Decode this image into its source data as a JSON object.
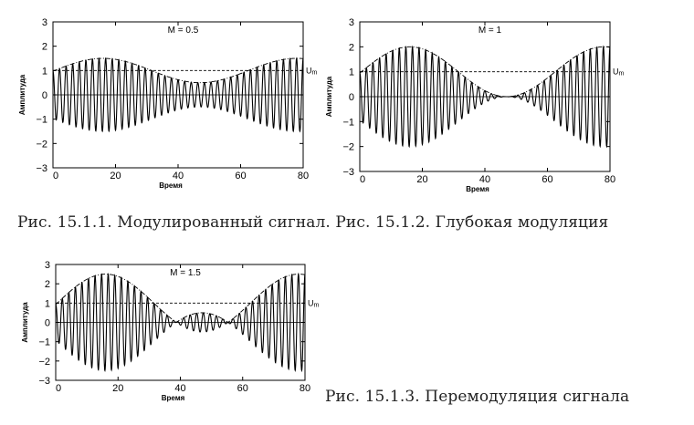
{
  "captions": {
    "fig1": "Рис. 15.1.1. Модулированный сигнал. Рис. 15.1.2. Глубокая модуляция",
    "fig3": "Рис. 15.1.3. Перемодуляция сигнала"
  },
  "chart_data": [
    {
      "type": "line",
      "annotation": "M = 0.5",
      "xlabel": "Время",
      "ylabel": "Амплитуда",
      "xlim": [
        0,
        80
      ],
      "ylim": [
        -3,
        3
      ],
      "xticks": [
        "0",
        "20",
        "40",
        "60",
        "80"
      ],
      "yticks": [
        "3",
        "2",
        "1",
        "0",
        "−1",
        "−2",
        "−3"
      ],
      "reference_label": "Um",
      "reference_level": 1,
      "modulation_index": 0.5,
      "envelope_period": 62,
      "envelope_peak_x": 16,
      "carrier_cycles": 38,
      "series": [
        {
          "values": "carrier y = (1 + 0.5*cos(2π(x-16)/62)) * cos(2π*38*x/80)",
          "style": "solid"
        },
        {
          "values": "envelope y = 1 + 0.5*cos(2π(x-16)/62)",
          "style": "dash-dot"
        },
        {
          "values": "y = 1",
          "style": "dashed"
        }
      ]
    },
    {
      "type": "line",
      "annotation": "M = 1",
      "xlabel": "Время",
      "ylabel": "Амплитуда",
      "xlim": [
        0,
        80
      ],
      "ylim": [
        -3,
        3
      ],
      "xticks": [
        "0",
        "20",
        "40",
        "60",
        "80"
      ],
      "yticks": [
        "3",
        "2",
        "1",
        "0",
        "−1",
        "−2",
        "−3"
      ],
      "reference_label": "Um",
      "reference_level": 1,
      "modulation_index": 1,
      "envelope_period": 62,
      "envelope_peak_x": 16,
      "carrier_cycles": 38,
      "series": [
        {
          "values": "carrier y = (1 + cos(2π(x-16)/62)) * cos(2π*38*x/80)",
          "style": "solid"
        },
        {
          "values": "envelope y = 1 + cos(2π(x-16)/62)",
          "style": "dash-dot"
        },
        {
          "values": "y = 1",
          "style": "dashed"
        }
      ]
    },
    {
      "type": "line",
      "annotation": "M = 1.5",
      "xlabel": "Время",
      "ylabel": "Амплитуда",
      "xlim": [
        0,
        80
      ],
      "ylim": [
        -3,
        3
      ],
      "xticks": [
        "0",
        "20",
        "40",
        "60",
        "80"
      ],
      "yticks": [
        "3",
        "2",
        "1",
        "0",
        "−1",
        "−2",
        "−3"
      ],
      "reference_label": "Um",
      "reference_level": 1,
      "modulation_index": 1.5,
      "envelope_period": 62,
      "envelope_peak_x": 16,
      "carrier_cycles": 38,
      "series": [
        {
          "values": "carrier y = (1 + 1.5*cos(2π(x-16)/62)) * cos(2π*38*x/80)",
          "style": "solid"
        },
        {
          "values": "envelope y = |1 + 1.5*cos(2π(x-16)/62)|",
          "style": "dash-dot"
        },
        {
          "values": "y = 1",
          "style": "dashed"
        }
      ]
    }
  ]
}
